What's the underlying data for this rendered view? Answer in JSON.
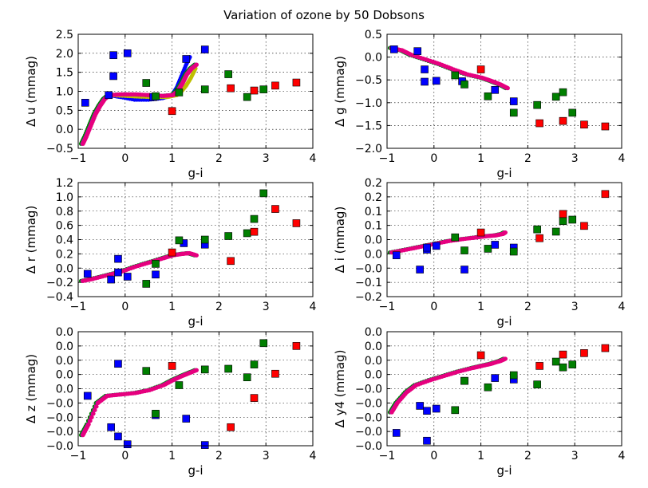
{
  "chart_data": {
    "title": "Variation of ozone by 50 Dobsons",
    "colors": {
      "blue": "#0000ff",
      "green": "#007f00",
      "red": "#ff0000",
      "magenta": "#bf00bf",
      "yellow": "#bfbf00",
      "curve_main": "#e6007e"
    },
    "panels": [
      {
        "type": "scatter",
        "ylabel": "Δ u (mmag)",
        "xlabel": "g-i",
        "xlim": [
          -1,
          4
        ],
        "ylim": [
          -0.5,
          2.5
        ],
        "xticks": [
          "−1",
          "0",
          "1",
          "2",
          "3",
          "4"
        ],
        "yticks": [
          "−0.5",
          "0.0",
          "0.5",
          "1.0",
          "1.5",
          "2.0",
          "2.5"
        ],
        "grid": true,
        "curve": [
          [
            -0.92,
            -0.38
          ],
          [
            -0.85,
            -0.2
          ],
          [
            -0.75,
            0.1
          ],
          [
            -0.65,
            0.4
          ],
          [
            -0.55,
            0.62
          ],
          [
            -0.45,
            0.8
          ],
          [
            -0.35,
            0.9
          ],
          [
            -0.1,
            0.92
          ],
          [
            0.2,
            0.92
          ],
          [
            0.5,
            0.9
          ],
          [
            0.8,
            0.88
          ],
          [
            1.0,
            0.9
          ],
          [
            1.1,
            1.0
          ],
          [
            1.2,
            1.2
          ],
          [
            1.3,
            1.45
          ],
          [
            1.4,
            1.6
          ],
          [
            1.5,
            1.7
          ]
        ],
        "curve_blue": [
          [
            -0.35,
            0.9
          ],
          [
            -0.1,
            0.85
          ],
          [
            0.2,
            0.78
          ],
          [
            0.5,
            0.78
          ],
          [
            0.8,
            0.82
          ],
          [
            1.0,
            0.9
          ],
          [
            1.1,
            1.1
          ],
          [
            1.2,
            1.4
          ],
          [
            1.3,
            1.7
          ],
          [
            1.38,
            1.9
          ]
        ],
        "curve_yellow": [
          [
            -0.35,
            0.9
          ],
          [
            0.0,
            0.88
          ],
          [
            0.3,
            0.86
          ],
          [
            0.6,
            0.85
          ],
          [
            0.9,
            0.85
          ],
          [
            1.1,
            0.9
          ],
          [
            1.2,
            1.0
          ],
          [
            1.3,
            1.15
          ],
          [
            1.4,
            1.35
          ],
          [
            1.5,
            1.6
          ]
        ],
        "squares_blue": [
          [
            -0.85,
            0.7
          ],
          [
            -0.25,
            1.95
          ],
          [
            -0.25,
            1.4
          ],
          [
            0.05,
            2.0
          ],
          [
            -0.35,
            0.9
          ],
          [
            0.6,
            0.85
          ],
          [
            1.3,
            1.85
          ],
          [
            1.7,
            2.1
          ]
        ],
        "squares_green": [
          [
            0.45,
            1.22
          ],
          [
            0.65,
            0.87
          ],
          [
            1.15,
            0.97
          ],
          [
            1.7,
            1.05
          ],
          [
            2.2,
            1.45
          ],
          [
            2.6,
            0.85
          ],
          [
            2.95,
            1.05
          ]
        ],
        "squares_red": [
          [
            1.0,
            0.48
          ],
          [
            2.25,
            1.08
          ],
          [
            2.75,
            1.02
          ],
          [
            3.2,
            1.15
          ],
          [
            3.65,
            1.23
          ]
        ]
      },
      {
        "type": "scatter",
        "ylabel": "Δ g (mmag)",
        "xlabel": "g-i",
        "xlim": [
          -1,
          4
        ],
        "ylim": [
          -2.0,
          0.5
        ],
        "xticks": [
          "−1",
          "0",
          "1",
          "2",
          "3",
          "4"
        ],
        "yticks": [
          "−2.0",
          "−1.5",
          "−1.0",
          "−0.5",
          "0.0",
          "0.5"
        ],
        "grid": true,
        "curve": [
          [
            -0.92,
            0.2
          ],
          [
            -0.7,
            0.15
          ],
          [
            -0.5,
            0.05
          ],
          [
            -0.2,
            -0.05
          ],
          [
            0.1,
            -0.15
          ],
          [
            0.4,
            -0.27
          ],
          [
            0.7,
            -0.38
          ],
          [
            1.0,
            -0.45
          ],
          [
            1.2,
            -0.52
          ],
          [
            1.4,
            -0.6
          ],
          [
            1.55,
            -0.68
          ]
        ],
        "squares_blue": [
          [
            -0.85,
            0.17
          ],
          [
            -0.35,
            0.13
          ],
          [
            -0.2,
            -0.27
          ],
          [
            -0.2,
            -0.54
          ],
          [
            0.05,
            -0.52
          ],
          [
            0.6,
            -0.53
          ],
          [
            1.3,
            -0.72
          ],
          [
            1.7,
            -0.97
          ]
        ],
        "squares_green": [
          [
            0.45,
            -0.4
          ],
          [
            0.65,
            -0.6
          ],
          [
            1.15,
            -0.86
          ],
          [
            1.7,
            -1.22
          ],
          [
            2.2,
            -1.05
          ],
          [
            2.6,
            -0.87
          ],
          [
            2.75,
            -0.77
          ],
          [
            2.95,
            -1.22
          ]
        ],
        "squares_red": [
          [
            1.0,
            -0.27
          ],
          [
            2.25,
            -1.45
          ],
          [
            2.75,
            -1.4
          ],
          [
            3.2,
            -1.48
          ],
          [
            3.65,
            -1.52
          ]
        ]
      },
      {
        "type": "scatter",
        "ylabel": "Δ r (mmag)",
        "xlabel": "g-i",
        "xlim": [
          -1,
          4
        ],
        "ylim": [
          -0.4,
          1.2
        ],
        "xticks": [
          "−1",
          "0",
          "1",
          "2",
          "3",
          "4"
        ],
        "yticks": [
          "−0.4",
          "−0.2",
          "0.0",
          "0.2",
          "0.4",
          "0.6",
          "0.8",
          "1.0",
          "1.2"
        ],
        "grid": true,
        "curve": [
          [
            -0.92,
            -0.18
          ],
          [
            -0.7,
            -0.15
          ],
          [
            -0.4,
            -0.1
          ],
          [
            -0.1,
            -0.05
          ],
          [
            0.2,
            0.02
          ],
          [
            0.5,
            0.08
          ],
          [
            0.8,
            0.14
          ],
          [
            1.0,
            0.18
          ],
          [
            1.2,
            0.2
          ],
          [
            1.35,
            0.21
          ],
          [
            1.5,
            0.18
          ]
        ],
        "squares_blue": [
          [
            -0.8,
            -0.08
          ],
          [
            -0.3,
            -0.16
          ],
          [
            -0.15,
            0.13
          ],
          [
            -0.15,
            -0.06
          ],
          [
            0.05,
            -0.12
          ],
          [
            0.65,
            -0.09
          ],
          [
            1.25,
            0.35
          ],
          [
            1.7,
            0.33
          ]
        ],
        "squares_green": [
          [
            0.45,
            -0.22
          ],
          [
            0.65,
            0.06
          ],
          [
            1.15,
            0.39
          ],
          [
            1.7,
            0.4
          ],
          [
            2.2,
            0.45
          ],
          [
            2.6,
            0.49
          ],
          [
            2.75,
            0.69
          ],
          [
            2.95,
            1.05
          ]
        ],
        "squares_red": [
          [
            1.0,
            0.22
          ],
          [
            2.25,
            0.1
          ],
          [
            2.75,
            0.51
          ],
          [
            3.2,
            0.83
          ],
          [
            3.65,
            0.63
          ]
        ]
      },
      {
        "type": "scatter",
        "ylabel": "Δ i (mmag)",
        "xlabel": "g-i",
        "xlim": [
          -1,
          4
        ],
        "ylim": [
          -0.2,
          0.2
        ],
        "xticks": [
          "−1",
          "0",
          "1",
          "2",
          "3",
          "4"
        ],
        "yticks": [
          "−0.2",
          "−0.1",
          "−0.0",
          "0.0",
          "0.0",
          "0.1",
          "0.1",
          "0.2",
          "0.2"
        ],
        "grid": true,
        "curve": [
          [
            -0.92,
            -0.045
          ],
          [
            -0.6,
            -0.035
          ],
          [
            -0.3,
            -0.025
          ],
          [
            0.0,
            -0.015
          ],
          [
            0.3,
            -0.005
          ],
          [
            0.6,
            0.002
          ],
          [
            0.9,
            0.008
          ],
          [
            1.1,
            0.012
          ],
          [
            1.3,
            0.015
          ],
          [
            1.45,
            0.02
          ],
          [
            1.5,
            0.025
          ]
        ],
        "squares_blue": [
          [
            -0.8,
            -0.055
          ],
          [
            -0.3,
            -0.105
          ],
          [
            -0.15,
            -0.035
          ],
          [
            -0.15,
            -0.028
          ],
          [
            0.05,
            -0.022
          ],
          [
            0.65,
            -0.105
          ],
          [
            1.3,
            -0.018
          ],
          [
            1.7,
            -0.028
          ]
        ],
        "squares_green": [
          [
            0.45,
            0.008
          ],
          [
            0.65,
            -0.038
          ],
          [
            1.15,
            -0.032
          ],
          [
            1.7,
            -0.042
          ],
          [
            2.2,
            0.036
          ],
          [
            2.6,
            0.028
          ],
          [
            2.75,
            0.065
          ],
          [
            2.95,
            0.07
          ]
        ],
        "squares_red": [
          [
            1.0,
            0.025
          ],
          [
            2.25,
            0.005
          ],
          [
            2.75,
            0.09
          ],
          [
            3.2,
            0.048
          ],
          [
            3.65,
            0.16
          ]
        ]
      },
      {
        "type": "scatter",
        "ylabel": "Δ z (mmag)",
        "xlabel": "g-i",
        "xlim": [
          -1,
          4
        ],
        "ylim": [
          -0.09,
          0.07
        ],
        "xticks": [
          "−1",
          "0",
          "1",
          "2",
          "3",
          "4"
        ],
        "yticks": [
          "−0.0",
          "−0.0",
          "−0.0",
          "−0.0",
          "0.0",
          "0.0",
          "0.0",
          "0.0",
          "0.0"
        ],
        "grid": true,
        "curve": [
          [
            -0.92,
            -0.075
          ],
          [
            -0.8,
            -0.06
          ],
          [
            -0.6,
            -0.03
          ],
          [
            -0.4,
            -0.02
          ],
          [
            -0.1,
            -0.018
          ],
          [
            0.2,
            -0.016
          ],
          [
            0.5,
            -0.012
          ],
          [
            0.8,
            -0.005
          ],
          [
            1.0,
            0.002
          ],
          [
            1.2,
            0.008
          ],
          [
            1.35,
            0.012
          ],
          [
            1.5,
            0.016
          ]
        ],
        "squares_blue": [
          [
            -0.8,
            -0.02
          ],
          [
            -0.3,
            -0.064
          ],
          [
            -0.15,
            0.025
          ],
          [
            -0.15,
            -0.077
          ],
          [
            0.05,
            -0.088
          ],
          [
            0.65,
            -0.047
          ],
          [
            1.3,
            -0.052
          ],
          [
            1.7,
            -0.089
          ]
        ],
        "squares_green": [
          [
            0.45,
            0.015
          ],
          [
            0.65,
            -0.045
          ],
          [
            1.15,
            -0.005
          ],
          [
            1.7,
            0.017
          ],
          [
            2.2,
            0.018
          ],
          [
            2.6,
            0.006
          ],
          [
            2.75,
            0.024
          ],
          [
            2.95,
            0.054
          ]
        ],
        "squares_red": [
          [
            1.0,
            0.022
          ],
          [
            2.25,
            -0.064
          ],
          [
            2.75,
            -0.023
          ],
          [
            3.2,
            0.011
          ],
          [
            3.65,
            0.05
          ]
        ]
      },
      {
        "type": "scatter",
        "ylabel": "Δ y4 (mmag)",
        "xlabel": "g-i",
        "xlim": [
          -1,
          4
        ],
        "ylim": [
          -0.09,
          0.07
        ],
        "xticks": [
          "−1",
          "0",
          "1",
          "2",
          "3",
          "4"
        ],
        "yticks": [
          "−0.0",
          "−0.0",
          "−0.0",
          "−0.0",
          "−0.0",
          "0.0",
          "0.0",
          "0.0",
          "0.0"
        ],
        "grid": true,
        "curve": [
          [
            -0.92,
            -0.043
          ],
          [
            -0.8,
            -0.03
          ],
          [
            -0.6,
            -0.015
          ],
          [
            -0.4,
            -0.005
          ],
          [
            -0.1,
            0.002
          ],
          [
            0.2,
            0.008
          ],
          [
            0.5,
            0.014
          ],
          [
            0.8,
            0.019
          ],
          [
            1.0,
            0.022
          ],
          [
            1.2,
            0.025
          ],
          [
            1.4,
            0.029
          ],
          [
            1.5,
            0.032
          ]
        ],
        "squares_blue": [
          [
            -0.8,
            -0.072
          ],
          [
            -0.3,
            -0.034
          ],
          [
            -0.15,
            -0.083
          ],
          [
            -0.15,
            -0.041
          ],
          [
            0.05,
            -0.038
          ],
          [
            0.65,
            0.001
          ],
          [
            1.3,
            0.005
          ],
          [
            1.7,
            0.003
          ]
        ],
        "squares_green": [
          [
            0.45,
            -0.04
          ],
          [
            0.65,
            0.001
          ],
          [
            1.15,
            -0.008
          ],
          [
            1.7,
            0.009
          ],
          [
            2.2,
            -0.004
          ],
          [
            2.6,
            0.028
          ],
          [
            2.75,
            0.02
          ],
          [
            2.95,
            0.024
          ]
        ],
        "squares_red": [
          [
            1.0,
            0.037
          ],
          [
            2.25,
            0.022
          ],
          [
            2.75,
            0.038
          ],
          [
            3.2,
            0.04
          ],
          [
            3.65,
            0.047
          ]
        ]
      }
    ]
  }
}
